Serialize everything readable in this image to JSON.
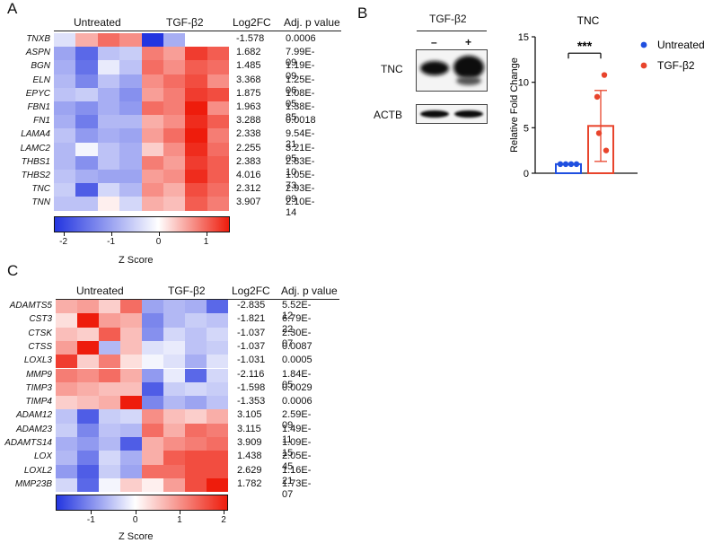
{
  "panelA": {
    "letter": "A",
    "headers": {
      "untreated": "Untreated",
      "tgf": "TGF-β2",
      "log2fc": "Log2FC",
      "padj": "Adj. p value"
    },
    "rows": [
      {
        "gene": "TNXB",
        "log2fc": "-1.578",
        "padj": "0.0006",
        "z": [
          -0.3,
          0.5,
          0.9,
          0.7,
          -2.2,
          -0.8,
          0.0,
          0.0
        ]
      },
      {
        "gene": "ASPN",
        "log2fc": "1.682",
        "padj": "7.99E-09",
        "z": [
          -0.9,
          -1.5,
          -0.6,
          -0.5,
          0.8,
          0.6,
          1.2,
          1.0
        ]
      },
      {
        "gene": "BGN",
        "log2fc": "1.485",
        "padj": "1.19E-09",
        "z": [
          -0.8,
          -1.4,
          -0.2,
          -0.6,
          0.9,
          0.7,
          1.0,
          0.9
        ]
      },
      {
        "gene": "ELN",
        "log2fc": "3.368",
        "padj": "1.25E-06",
        "z": [
          -0.7,
          -1.2,
          -0.6,
          -0.9,
          0.7,
          0.9,
          1.1,
          0.7
        ]
      },
      {
        "gene": "EPYC",
        "log2fc": "1.875",
        "padj": "1.08E-05",
        "z": [
          -0.6,
          -0.5,
          -0.8,
          -1.1,
          0.6,
          0.8,
          1.2,
          1.1
        ]
      },
      {
        "gene": "FBN1",
        "log2fc": "1.963",
        "padj": "1.38E-85",
        "z": [
          -0.9,
          -1.1,
          -0.8,
          -1.0,
          0.9,
          0.8,
          1.4,
          0.7
        ]
      },
      {
        "gene": "FN1",
        "log2fc": "3.288",
        "padj": "0.0018",
        "z": [
          -0.8,
          -1.3,
          -0.7,
          -0.7,
          0.5,
          0.7,
          1.3,
          1.0
        ]
      },
      {
        "gene": "LAMA4",
        "log2fc": "2.338",
        "padj": "9.54E-21",
        "z": [
          -0.6,
          -1.0,
          -0.8,
          -0.9,
          0.6,
          0.9,
          1.4,
          0.8
        ]
      },
      {
        "gene": "LAMC2",
        "log2fc": "2.255",
        "padj": "3.21E-05",
        "z": [
          -0.7,
          -0.1,
          -0.6,
          -0.8,
          0.3,
          0.7,
          1.3,
          0.9
        ]
      },
      {
        "gene": "THBS1",
        "log2fc": "2.383",
        "padj": "2.83E-10",
        "z": [
          -0.7,
          -1.1,
          -0.6,
          -0.8,
          0.8,
          0.6,
          1.2,
          1.0
        ]
      },
      {
        "gene": "THBS2",
        "log2fc": "4.016",
        "padj": "1.05E-73",
        "z": [
          -0.6,
          -0.8,
          -0.9,
          -0.9,
          0.6,
          0.7,
          1.3,
          1.0
        ]
      },
      {
        "gene": "TNC",
        "log2fc": "2.312",
        "padj": "2.93E-09",
        "z": [
          -0.5,
          -1.6,
          -0.4,
          -0.7,
          0.7,
          0.5,
          1.1,
          0.9
        ]
      },
      {
        "gene": "TNN",
        "log2fc": "3.907",
        "padj": "2.10E-14",
        "z": [
          -0.6,
          -0.6,
          0.1,
          -0.4,
          0.5,
          0.4,
          1.0,
          0.8
        ]
      }
    ],
    "colorbar": {
      "ticks": [
        "-2",
        "-1",
        "0",
        "1"
      ],
      "tick_values": [
        -2,
        -1,
        0,
        1
      ],
      "min": -2.2,
      "max": 1.5,
      "label": "Z Score"
    }
  },
  "panelB": {
    "letter": "B",
    "blot": {
      "header": "TGF-β2",
      "lanes": [
        "–",
        "+"
      ],
      "rows": [
        "TNC",
        "ACTB"
      ]
    },
    "chart_data": {
      "type": "bar",
      "title": "TNC",
      "ylabel": "Relative Fold Change",
      "xlabel": "",
      "ylim": [
        0,
        15
      ],
      "yticks": [
        "0",
        "5",
        "10",
        "15"
      ],
      "significance": "***",
      "categories": [
        "Untreated",
        "TGF-β2"
      ],
      "series": [
        {
          "name": "Untreated",
          "mean": 1.0,
          "sd_upper": 1.0,
          "sd_lower": 1.0,
          "points": [
            1.0,
            1.0,
            1.0,
            1.0
          ],
          "color": "#1f4fe0"
        },
        {
          "name": "TGF-β2",
          "mean": 5.2,
          "sd_upper": 9.1,
          "sd_lower": 1.3,
          "points": [
            10.8,
            8.4,
            4.4,
            2.5
          ],
          "color": "#e8442c"
        }
      ],
      "legend": [
        "Untreated",
        "TGF-β2"
      ]
    }
  },
  "panelC": {
    "letter": "C",
    "headers": {
      "untreated": "Untreated",
      "tgf": "TGF-β2",
      "log2fc": "Log2FC",
      "padj": "Adj. p value"
    },
    "rows": [
      {
        "gene": "ADAMTS5",
        "log2fc": "-2.835",
        "padj": "5.52E-12",
        "z": [
          0.5,
          0.6,
          0.3,
          0.9,
          -0.9,
          -0.7,
          -0.8,
          -1.5
        ]
      },
      {
        "gene": "CST3",
        "log2fc": "-1.821",
        "padj": "6.79E-22",
        "z": [
          0.2,
          1.4,
          0.6,
          0.5,
          -1.2,
          -0.7,
          -0.5,
          -0.6
        ]
      },
      {
        "gene": "CTSK",
        "log2fc": "-1.037",
        "padj": "2.30E-07",
        "z": [
          0.4,
          0.3,
          1.0,
          0.4,
          -1.1,
          -0.4,
          -0.6,
          -0.4
        ]
      },
      {
        "gene": "CTSS",
        "log2fc": "-1.037",
        "padj": "0.0087",
        "z": [
          0.6,
          1.9,
          -0.7,
          0.4,
          -0.3,
          -0.2,
          -0.6,
          -0.5
        ]
      },
      {
        "gene": "LOXL3",
        "log2fc": "-1.031",
        "padj": "0.0005",
        "z": [
          1.2,
          0.3,
          0.8,
          0.2,
          -0.1,
          -0.3,
          -0.8,
          -0.3
        ]
      },
      {
        "gene": "MMP9",
        "log2fc": "-2.116",
        "padj": "1.84E-05",
        "z": [
          0.8,
          0.7,
          0.9,
          0.5,
          -1.0,
          -0.2,
          -1.5,
          -0.4
        ]
      },
      {
        "gene": "TIMP3",
        "log2fc": "-1.598",
        "padj": "0.0029",
        "z": [
          0.6,
          0.5,
          0.4,
          0.4,
          -1.6,
          -0.5,
          -0.4,
          -0.5
        ]
      },
      {
        "gene": "TIMP4",
        "log2fc": "-1.353",
        "padj": "0.0006",
        "z": [
          0.3,
          0.4,
          0.5,
          1.6,
          -1.2,
          -0.7,
          -0.9,
          -0.6
        ]
      },
      {
        "gene": "ADAM12",
        "log2fc": "3.105",
        "padj": "2.59E-09",
        "z": [
          -0.6,
          -1.6,
          -0.5,
          -0.4,
          0.7,
          0.4,
          0.3,
          0.5
        ]
      },
      {
        "gene": "ADAM23",
        "log2fc": "3.115",
        "padj": "1.49E-11",
        "z": [
          -0.5,
          -1.2,
          -0.6,
          -0.7,
          0.9,
          0.5,
          0.9,
          0.8
        ]
      },
      {
        "gene": "ADAMTS14",
        "log2fc": "3.909",
        "padj": "1.09E-15",
        "z": [
          -0.8,
          -1.0,
          -0.7,
          -1.6,
          0.5,
          0.7,
          0.8,
          0.9
        ]
      },
      {
        "gene": "LOX",
        "log2fc": "1.438",
        "padj": "2.05E-45",
        "z": [
          -0.7,
          -1.3,
          -0.4,
          -0.8,
          0.5,
          1.0,
          1.1,
          1.1
        ]
      },
      {
        "gene": "LOXL2",
        "log2fc": "2.629",
        "padj": "1.16E-21",
        "z": [
          -1.0,
          -1.6,
          -0.5,
          -0.9,
          0.9,
          0.9,
          1.1,
          1.1
        ]
      },
      {
        "gene": "MMP23B",
        "log2fc": "1.782",
        "padj": "1.73E-07",
        "z": [
          -0.4,
          -1.5,
          -0.1,
          0.3,
          0.1,
          0.6,
          1.1,
          1.8
        ]
      }
    ],
    "colorbar": {
      "ticks": [
        "-1",
        "0",
        "1",
        "2"
      ],
      "tick_values": [
        -1,
        0,
        1,
        2
      ],
      "min": -1.8,
      "max": 2.1,
      "label": "Z Score"
    }
  },
  "colors": {
    "low": "#2335e0",
    "mid": "#ffffff",
    "high": "#ee1c0c"
  }
}
